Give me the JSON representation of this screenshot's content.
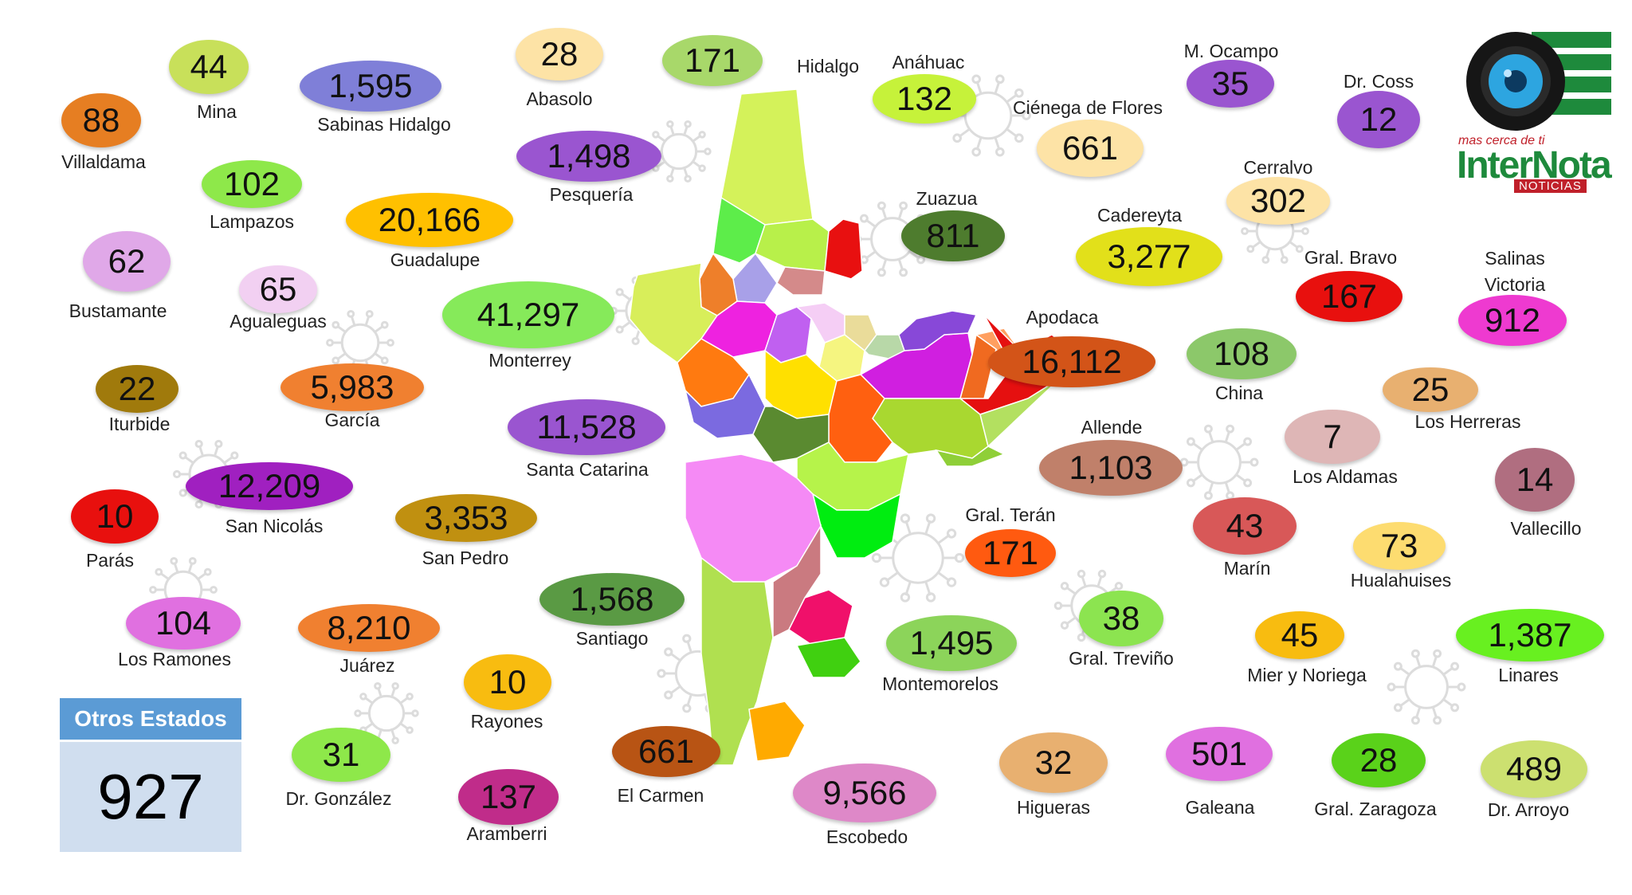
{
  "municipalities": [
    {
      "name": "Mina",
      "value": "44",
      "color": "#c8e05a"
    },
    {
      "name": "Sabinas Hidalgo",
      "value": "1,595",
      "color": "#7f7fd8"
    },
    {
      "name": "Abasolo",
      "value": "28",
      "color": "#fde3a6"
    },
    {
      "name": "Hidalgo",
      "value": "171",
      "color": "#a8d86a"
    },
    {
      "name": "Anáhuac",
      "value": "132",
      "color": "#c6f23a"
    },
    {
      "name": "M. Ocampo",
      "value": "35",
      "color": "#9a55d0"
    },
    {
      "name": "Dr. Coss",
      "value": "12",
      "color": "#9a55d0"
    },
    {
      "name": "Villaldama",
      "value": "88",
      "color": "#e67e22"
    },
    {
      "name": "Pesquería",
      "value": "1,498",
      "color": "#9a55d0"
    },
    {
      "name": "Ciénega de Flores",
      "value": "661",
      "color": "#fde3a6"
    },
    {
      "name": "Cerralvo",
      "value": "302",
      "color": "#fde3a6"
    },
    {
      "name": "Lampazos",
      "value": "102",
      "color": "#8ee84a"
    },
    {
      "name": "Zuazua",
      "value": "811",
      "color": "#4e7c2e"
    },
    {
      "name": "Guadalupe",
      "value": "20,166",
      "color": "#ffc000"
    },
    {
      "name": "Cadereyta",
      "value": "3,277",
      "color": "#e2e01a"
    },
    {
      "name": "Gral. Bravo",
      "value": "167",
      "color": "#e8100e"
    },
    {
      "name": "Salinas Victoria",
      "value": "912",
      "color": "#ee3ad0"
    },
    {
      "name": "Bustamante",
      "value": "62",
      "color": "#e0a8e8"
    },
    {
      "name": "Agualeguas",
      "value": "65",
      "color": "#f2d0f2"
    },
    {
      "name": "Monterrey",
      "value": "41,297",
      "color": "#86ea5a"
    },
    {
      "name": "Apodaca",
      "value": "16,112",
      "color": "#d35418"
    },
    {
      "name": "China",
      "value": "108",
      "color": "#8cc86a"
    },
    {
      "name": "Los Herreras",
      "value": "25",
      "color": "#e8b070"
    },
    {
      "name": "Iturbide",
      "value": "22",
      "color": "#a07a0c"
    },
    {
      "name": "García",
      "value": "5,983",
      "color": "#f08030"
    },
    {
      "name": "Santa Catarina",
      "value": "11,528",
      "color": "#9a55d0"
    },
    {
      "name": "Allende",
      "value": "1,103",
      "color": "#c0806a"
    },
    {
      "name": "Los Aldamas",
      "value": "7",
      "color": "#deb6b6"
    },
    {
      "name": "Vallecillo",
      "value": "14",
      "color": "#b06e80"
    },
    {
      "name": "Parás",
      "value": "10",
      "color": "#e8100e"
    },
    {
      "name": "San Nicolás",
      "value": "12,209",
      "color": "#a020c0"
    },
    {
      "name": "San Pedro",
      "value": "3,353",
      "color": "#c09010"
    },
    {
      "name": "Gral. Terán",
      "value": "171",
      "color": "#ff5a10"
    },
    {
      "name": "Marín",
      "value": "43",
      "color": "#d85858"
    },
    {
      "name": "Hualahuises",
      "value": "73",
      "color": "#fddc70"
    },
    {
      "name": "Santiago",
      "value": "1,568",
      "color": "#5a9a44"
    },
    {
      "name": "Los Ramones",
      "value": "104",
      "color": "#e070e0"
    },
    {
      "name": "Juárez",
      "value": "8,210",
      "color": "#f08030"
    },
    {
      "name": "Montemorelos",
      "value": "1,495",
      "color": "#8cd45a"
    },
    {
      "name": "Gral. Treviño",
      "value": "38",
      "color": "#8ce450"
    },
    {
      "name": "Mier y Noriega",
      "value": "45",
      "color": "#f8bc10"
    },
    {
      "name": "Linares",
      "value": "1,387",
      "color": "#68f020"
    },
    {
      "name": "Rayones",
      "value": "10",
      "color": "#f8bc10"
    },
    {
      "name": "Dr. González",
      "value": "31",
      "color": "#8ee84a"
    },
    {
      "name": "Aramberri",
      "value": "137",
      "color": "#c02c8a"
    },
    {
      "name": "El Carmen",
      "value": "661",
      "color": "#b85414"
    },
    {
      "name": "Escobedo",
      "value": "9,566",
      "color": "#de88c8"
    },
    {
      "name": "Higueras",
      "value": "32",
      "color": "#e8b070"
    },
    {
      "name": "Galeana",
      "value": "501",
      "color": "#e070e0"
    },
    {
      "name": "Gral. Zaragoza",
      "value": "28",
      "color": "#5ad21a"
    },
    {
      "name": "Dr. Arroyo",
      "value": "489",
      "color": "#cce070"
    }
  ],
  "otros": {
    "label": "Otros Estados",
    "value": "927"
  },
  "logo": {
    "tagline": "mas cerca de ti",
    "name": "InterNota",
    "sub": "NOTICIAS"
  }
}
